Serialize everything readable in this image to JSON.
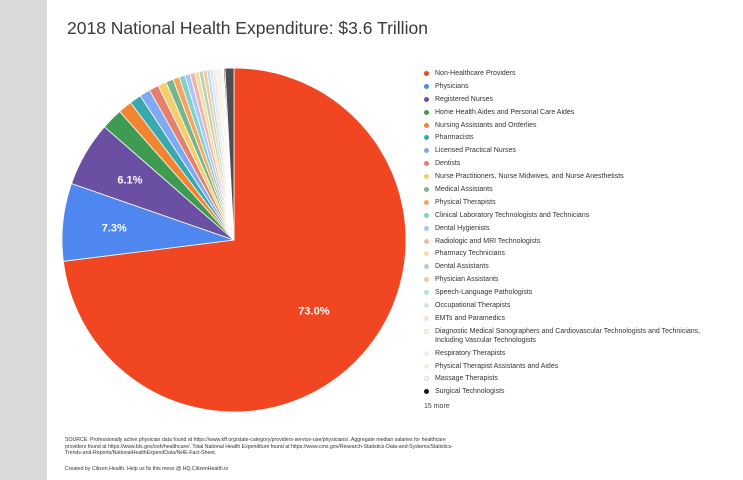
{
  "chart_data": {
    "type": "pie",
    "title": "2018 National Health Expenditure: $3.6 Trillion",
    "units": "percent of total",
    "slices": [
      {
        "label": "Non-Healthcare Providers",
        "value": 73.0,
        "color": "#f04622",
        "data_label": "73.0%"
      },
      {
        "label": "Physicians",
        "value": 7.3,
        "color": "#4f87f0",
        "data_label": "7.3%"
      },
      {
        "label": "Registered Nurses",
        "value": 6.1,
        "color": "#6a4fa3",
        "data_label": "6.1%"
      },
      {
        "label": "Home Health Aides and Personal Care Aides",
        "value": 2.0,
        "color": "#3f9a52",
        "data_label": ""
      },
      {
        "label": "Nursing Assistants and Orderlies",
        "value": 1.3,
        "color": "#f28530",
        "data_label": ""
      },
      {
        "label": "Pharmacists",
        "value": 1.1,
        "color": "#3aa9ad",
        "data_label": ""
      },
      {
        "label": "Licensed Practical Nurses",
        "value": 1.0,
        "color": "#7fa9f2",
        "data_label": ""
      },
      {
        "label": "Dentists",
        "value": 0.9,
        "color": "#e57f6e",
        "data_label": ""
      },
      {
        "label": "Nurse Practitioners, Nurse Midwives, and Nurse Anesthetists",
        "value": 0.8,
        "color": "#f2cf6a",
        "data_label": ""
      },
      {
        "label": "Medical Assistants",
        "value": 0.7,
        "color": "#79b58a",
        "data_label": ""
      },
      {
        "label": "Physical Therapists",
        "value": 0.6,
        "color": "#f4a55f",
        "data_label": ""
      },
      {
        "label": "Clinical Laboratory Technologists and Technicians",
        "value": 0.55,
        "color": "#83cfcf",
        "data_label": ""
      },
      {
        "label": "Dental Hygienists",
        "value": 0.5,
        "color": "#aac6f4",
        "data_label": ""
      },
      {
        "label": "Radiologic and MRI Technologists",
        "value": 0.45,
        "color": "#f0b5aa",
        "data_label": ""
      },
      {
        "label": "Pharmacy Technicians",
        "value": 0.4,
        "color": "#f6dda0",
        "data_label": ""
      },
      {
        "label": "Dental Assistants",
        "value": 0.38,
        "color": "#b4d3bb",
        "data_label": ""
      },
      {
        "label": "Physician Assistants",
        "value": 0.35,
        "color": "#f7c7a0",
        "data_label": ""
      },
      {
        "label": "Speech-Language Pathologists",
        "value": 0.3,
        "color": "#b5e0e0",
        "data_label": ""
      },
      {
        "label": "Occupational Therapists",
        "value": 0.28,
        "color": "#d6e3f8",
        "data_label": ""
      },
      {
        "label": "EMTs and Paramedics",
        "value": 0.25,
        "color": "#f8e1dc",
        "data_label": ""
      },
      {
        "label": "Diagnostic Medical Sonographers and Cardiovascular Technologists and Technicians, Including Vascular Technologists",
        "value": 0.22,
        "color": "#faf0d6",
        "data_label": ""
      },
      {
        "label": "Respiratory Therapists",
        "value": 0.2,
        "color": "#e6efe8",
        "data_label": ""
      },
      {
        "label": "Physical Therapist Assistants and Aides",
        "value": 0.18,
        "color": "#fbeadb",
        "data_label": ""
      },
      {
        "label": "Massage Therapists",
        "value": 0.15,
        "color": "#eef7f7",
        "data_label": ""
      },
      {
        "label": "Surgical Technologists",
        "value": 0.12,
        "color": "#1a1a1a",
        "data_label": ""
      }
    ],
    "other_slices": {
      "label": "Other (15 more)",
      "value": 0.84,
      "color": "#4d4d4d"
    },
    "legend_position": "right",
    "legend_more": "15 more"
  },
  "footer": {
    "source": "SOURCE: Professionally active physician data found at https://www.kff.org/state-category/providers-service-use/physicians/. Aggregate median salaries for healthcare providers found at https://www.bls.gov/ooh/healthcare/. Total National Health Expenditure found at https://www.cms.gov/Research-Statistics-Data-and-Systems/Statistics-Trends-and-Reports/NationalHealthExpendData/NHE-Fact-Sheet.",
    "credit": "Created by Citizen.Health. Help us fix this mess @ HQ.CitizenHealth.io"
  }
}
